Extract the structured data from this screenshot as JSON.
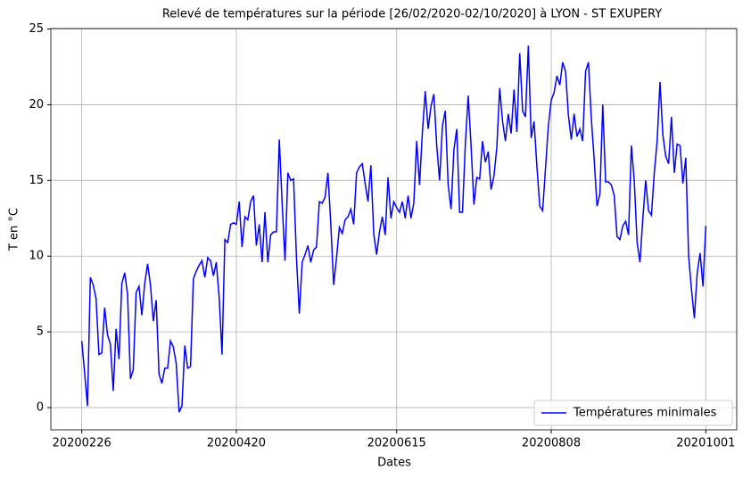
{
  "chart_data": {
    "type": "line",
    "title": "Relevé de températures sur la période [26/02/2020-02/10/2020] à LYON - ST EXUPERY",
    "xlabel": "Dates",
    "ylabel": "T en °C",
    "x": [
      "20200226",
      "20200227",
      "20200228",
      "20200229",
      "20200301",
      "20200302",
      "20200303",
      "20200304",
      "20200305",
      "20200306",
      "20200307",
      "20200308",
      "20200309",
      "20200310",
      "20200311",
      "20200312",
      "20200313",
      "20200314",
      "20200315",
      "20200316",
      "20200317",
      "20200318",
      "20200319",
      "20200320",
      "20200321",
      "20200322",
      "20200323",
      "20200324",
      "20200325",
      "20200326",
      "20200327",
      "20200328",
      "20200329",
      "20200330",
      "20200331",
      "20200401",
      "20200402",
      "20200403",
      "20200404",
      "20200405",
      "20200406",
      "20200407",
      "20200408",
      "20200409",
      "20200410",
      "20200411",
      "20200412",
      "20200413",
      "20200414",
      "20200415",
      "20200416",
      "20200417",
      "20200418",
      "20200419",
      "20200420",
      "20200421",
      "20200422",
      "20200423",
      "20200424",
      "20200425",
      "20200426",
      "20200427",
      "20200428",
      "20200429",
      "20200430",
      "20200501",
      "20200502",
      "20200503",
      "20200504",
      "20200505",
      "20200506",
      "20200507",
      "20200508",
      "20200509",
      "20200510",
      "20200511",
      "20200512",
      "20200513",
      "20200514",
      "20200515",
      "20200516",
      "20200517",
      "20200518",
      "20200519",
      "20200520",
      "20200521",
      "20200522",
      "20200523",
      "20200524",
      "20200525",
      "20200526",
      "20200527",
      "20200528",
      "20200529",
      "20200530",
      "20200531",
      "20200601",
      "20200602",
      "20200603",
      "20200604",
      "20200605",
      "20200606",
      "20200607",
      "20200608",
      "20200609",
      "20200610",
      "20200611",
      "20200612",
      "20200613",
      "20200614",
      "20200615",
      "20200616",
      "20200617",
      "20200618",
      "20200619",
      "20200620",
      "20200621",
      "20200622",
      "20200623",
      "20200624",
      "20200625",
      "20200626",
      "20200627",
      "20200628",
      "20200629",
      "20200630",
      "20200701",
      "20200702",
      "20200703",
      "20200704",
      "20200705",
      "20200706",
      "20200707",
      "20200708",
      "20200709",
      "20200710",
      "20200711",
      "20200712",
      "20200713",
      "20200714",
      "20200715",
      "20200716",
      "20200717",
      "20200718",
      "20200719",
      "20200720",
      "20200721",
      "20200722",
      "20200723",
      "20200724",
      "20200725",
      "20200726",
      "20200727",
      "20200728",
      "20200729",
      "20200730",
      "20200731",
      "20200801",
      "20200802",
      "20200803",
      "20200804",
      "20200805",
      "20200806",
      "20200807",
      "20200808",
      "20200809",
      "20200810",
      "20200811",
      "20200812",
      "20200813",
      "20200814",
      "20200815",
      "20200816",
      "20200817",
      "20200818",
      "20200819",
      "20200820",
      "20200821",
      "20200822",
      "20200823",
      "20200824",
      "20200825",
      "20200826",
      "20200827",
      "20200828",
      "20200829",
      "20200830",
      "20200831",
      "20200901",
      "20200902",
      "20200903",
      "20200904",
      "20200905",
      "20200906",
      "20200907",
      "20200908",
      "20200909",
      "20200910",
      "20200911",
      "20200912",
      "20200913",
      "20200914",
      "20200915",
      "20200916",
      "20200917",
      "20200918",
      "20200919",
      "20200920",
      "20200921",
      "20200922",
      "20200923",
      "20200924",
      "20200925",
      "20200926",
      "20200927",
      "20200928",
      "20200929",
      "20200930",
      "20201001"
    ],
    "series": [
      {
        "name": "Températures minimales",
        "color": "#0000ff",
        "values": [
          4.4,
          2.3,
          0.1,
          8.6,
          8.1,
          7.2,
          3.5,
          3.6,
          6.6,
          4.8,
          4.2,
          1.1,
          5.2,
          3.2,
          8.2,
          8.9,
          7.5,
          1.9,
          2.5,
          7.6,
          8.0,
          6.1,
          8.2,
          9.5,
          8.1,
          5.7,
          7.1,
          2.2,
          1.6,
          2.6,
          2.6,
          4.4,
          4.0,
          2.9,
          -0.3,
          0.1,
          4.1,
          2.6,
          2.7,
          8.5,
          9.0,
          9.4,
          9.7,
          8.6,
          9.9,
          9.7,
          8.7,
          9.6,
          7.3,
          3.5,
          11.1,
          10.9,
          12.1,
          12.2,
          12.1,
          13.6,
          10.6,
          12.6,
          12.4,
          13.6,
          14.0,
          10.7,
          12.1,
          9.6,
          12.9,
          9.6,
          11.4,
          11.6,
          11.6,
          17.7,
          13.5,
          9.7,
          15.5,
          15.0,
          15.1,
          9.9,
          6.2,
          9.6,
          10.1,
          10.7,
          9.6,
          10.4,
          10.6,
          13.6,
          13.5,
          13.9,
          15.5,
          12.1,
          8.1,
          9.9,
          11.9,
          11.5,
          12.4,
          12.6,
          13.1,
          12.1,
          15.5,
          15.9,
          16.1,
          14.8,
          13.6,
          16.0,
          11.5,
          10.1,
          11.6,
          12.6,
          11.4,
          15.2,
          12.5,
          13.6,
          13.2,
          12.9,
          13.6,
          12.5,
          14.0,
          12.5,
          13.5,
          17.6,
          14.7,
          18.2,
          20.9,
          18.4,
          19.9,
          20.7,
          17.3,
          15.0,
          18.6,
          19.6,
          14.7,
          13.1,
          17.0,
          18.4,
          12.9,
          12.9,
          17.4,
          20.6,
          17.3,
          13.4,
          15.2,
          15.1,
          17.6,
          16.2,
          16.9,
          14.4,
          15.3,
          17.2,
          21.1,
          18.9,
          17.6,
          19.4,
          18.1,
          21.0,
          18.2,
          23.4,
          19.6,
          19.2,
          23.9,
          17.8,
          18.9,
          15.9,
          13.3,
          13.0,
          15.8,
          18.6,
          20.3,
          20.8,
          21.9,
          21.3,
          22.8,
          22.2,
          19.3,
          17.7,
          19.4,
          17.9,
          18.4,
          17.6,
          22.2,
          22.8,
          19.1,
          16.4,
          13.3,
          14.1,
          20.0,
          14.9,
          14.9,
          14.7,
          14.0,
          11.3,
          11.1,
          12.0,
          12.3,
          11.4,
          17.3,
          15.0,
          10.9,
          9.6,
          12.5,
          15.0,
          13.0,
          12.7,
          15.5,
          17.6,
          21.5,
          18.0,
          16.6,
          16.1,
          19.2,
          15.5,
          17.4,
          17.3,
          14.8,
          16.5,
          10.0,
          7.8,
          5.9,
          8.9,
          10.2,
          8.0,
          12.0
        ]
      }
    ],
    "xticks": [
      "20200226",
      "20200420",
      "20200615",
      "20200808",
      "20201001"
    ],
    "ylim": [
      -1.47,
      25.03
    ],
    "yticks": [
      0,
      5,
      10,
      15,
      20,
      25
    ],
    "grid": true,
    "legend": "lower right"
  }
}
